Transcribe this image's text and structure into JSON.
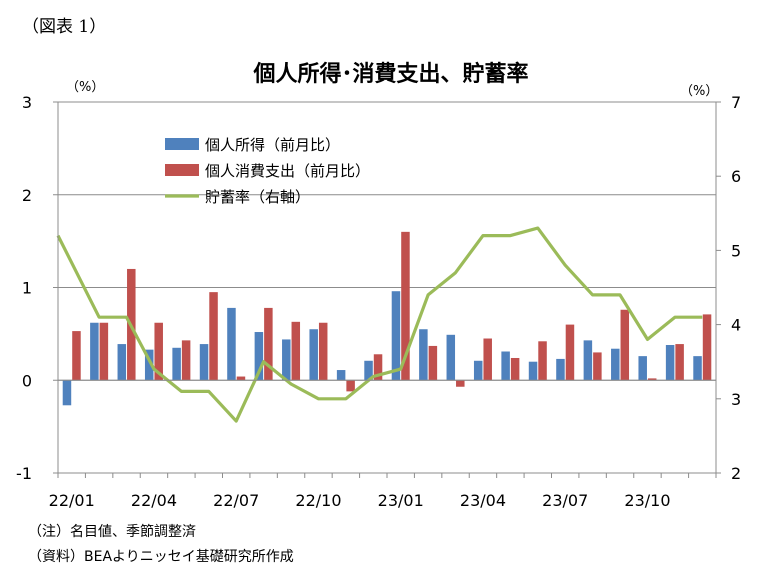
{
  "figure_label": "（図表 1）",
  "notes": [
    "（注）名目値、季節調整済",
    "（資料）BEAよりニッセイ基礎研究所作成"
  ],
  "chart_data": {
    "type": "bar",
    "title": "個人所得･消費支出、貯蓄率",
    "y_unit_left": "（%）",
    "y_unit_right": "（%）",
    "ylim": [
      -1,
      3
    ],
    "y2lim": [
      2,
      7
    ],
    "yticks": [
      -1,
      0,
      1,
      2,
      3
    ],
    "y2ticks": [
      2,
      3,
      4,
      5,
      6,
      7
    ],
    "categories": [
      "22/01",
      "22/02",
      "22/03",
      "22/04",
      "22/05",
      "22/06",
      "22/07",
      "22/08",
      "22/09",
      "22/10",
      "22/11",
      "22/12",
      "23/01",
      "23/02",
      "23/03",
      "23/04",
      "23/05",
      "23/06",
      "23/07",
      "23/08",
      "23/09",
      "23/10",
      "23/11",
      "23/12"
    ],
    "x_tick_labels": [
      {
        "index": 0,
        "label": "22/01"
      },
      {
        "index": 3,
        "label": "22/04"
      },
      {
        "index": 6,
        "label": "22/07"
      },
      {
        "index": 9,
        "label": "22/10"
      },
      {
        "index": 12,
        "label": "23/01"
      },
      {
        "index": 15,
        "label": "23/04"
      },
      {
        "index": 18,
        "label": "23/07"
      },
      {
        "index": 21,
        "label": "23/10"
      }
    ],
    "grid": true,
    "legend_position": "top-left",
    "series": [
      {
        "name": "個人所得（前月比）",
        "type": "bar",
        "axis": "left",
        "color": "#4f81bd",
        "values": [
          -0.27,
          0.62,
          0.39,
          0.33,
          0.35,
          0.39,
          0.78,
          0.52,
          0.44,
          0.55,
          0.11,
          0.21,
          0.96,
          0.55,
          0.49,
          0.21,
          0.31,
          0.2,
          0.23,
          0.43,
          0.34,
          0.26,
          0.38,
          0.26
        ]
      },
      {
        "name": "個人消費支出（前月比）",
        "type": "bar",
        "axis": "left",
        "color": "#c0504d",
        "values": [
          0.53,
          0.62,
          1.2,
          0.62,
          0.43,
          0.95,
          0.04,
          0.78,
          0.63,
          0.62,
          -0.12,
          0.28,
          1.6,
          0.37,
          -0.07,
          0.45,
          0.24,
          0.42,
          0.6,
          0.3,
          0.76,
          0.02,
          0.39,
          0.71
        ]
      },
      {
        "name": "貯蓄率（右軸）",
        "type": "line",
        "axis": "right",
        "color": "#9bbb59",
        "values": [
          5.2,
          4.1,
          4.1,
          3.4,
          3.1,
          3.1,
          2.7,
          3.5,
          3.2,
          3.0,
          3.0,
          3.3,
          3.4,
          4.4,
          4.7,
          5.2,
          5.2,
          5.3,
          4.8,
          4.4,
          4.4,
          3.8,
          4.1,
          4.1
        ]
      }
    ]
  }
}
